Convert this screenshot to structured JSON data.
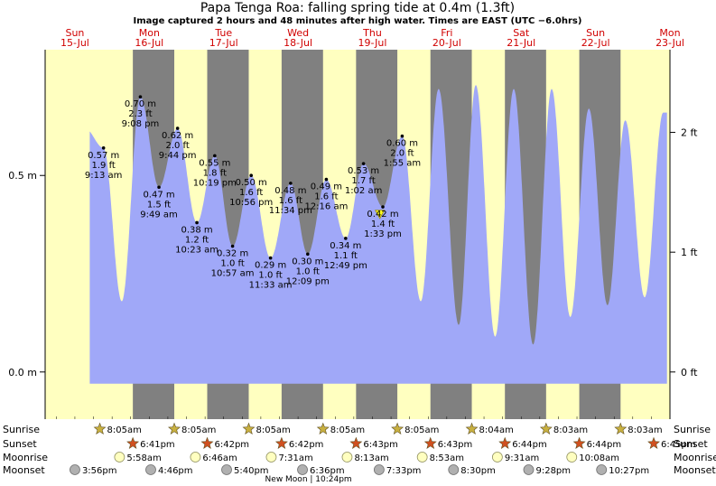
{
  "title": "Papa Tenga Roa: falling  spring tide at 0.4m (1.3ft)",
  "subtitle": "Image captured 2 hours and 48 minutes after high water. Times are EAST (UTC −6.0hrs)",
  "colors": {
    "day": "#ffffc0",
    "night": "#808080",
    "tide": "#a0a8f8",
    "day_label": "#d00000",
    "star_sun": "#c8b040",
    "star_sunset": "#d05020"
  },
  "chart_data": {
    "type": "area",
    "x_unit": "days since Sun 15-Jul 00:00 (EAST)",
    "days": [
      {
        "dow": "Sun",
        "date": "15-Jul"
      },
      {
        "dow": "Mon",
        "date": "16-Jul"
      },
      {
        "dow": "Tue",
        "date": "17-Jul"
      },
      {
        "dow": "Wed",
        "date": "18-Jul"
      },
      {
        "dow": "Thu",
        "date": "19-Jul"
      },
      {
        "dow": "Fri",
        "date": "20-Jul"
      },
      {
        "dow": "Sat",
        "date": "21-Jul"
      },
      {
        "dow": "Sun",
        "date": "22-Jul"
      },
      {
        "dow": "Mon",
        "date": "23-Jul"
      }
    ],
    "ylim": [
      -0.12,
      0.82
    ],
    "yticks_m": [
      {
        "v": 0.0,
        "label": "0.0 m"
      },
      {
        "v": 0.5,
        "label": "0.5 m"
      }
    ],
    "yticks_ft": [
      {
        "v": 0,
        "label": "0 ft"
      },
      {
        "v": 1,
        "label": "1 ft"
      },
      {
        "v": 2,
        "label": "2 ft"
      }
    ],
    "xlim": [
      -0.4,
      8.0
    ],
    "tide_range": [
      0.2,
      7.96
    ],
    "extremes": [
      {
        "t": 0.135,
        "m": 0.62,
        "label": false
      },
      {
        "t": 0.385,
        "m": 0.57,
        "text": [
          "0.57 m",
          "1.9 ft",
          "9:13 am"
        ]
      },
      {
        "t": 0.63,
        "m": 0.18,
        "label": false
      },
      {
        "t": 0.88,
        "m": 0.7,
        "text": [
          "0.70 m",
          "2.3 ft",
          "9:08 pm"
        ]
      },
      {
        "t": 1.13,
        "m": 0.47,
        "text": [
          "0.47 m",
          "1.5 ft",
          "9:49 am"
        ]
      },
      {
        "t": 1.38,
        "m": 0.62,
        "text": [
          "0.62 m",
          "2.0 ft",
          "9:44 pm"
        ]
      },
      {
        "t": 1.64,
        "m": 0.38,
        "text": [
          "0.38 m",
          "1.2 ft",
          "10:23 am"
        ]
      },
      {
        "t": 1.88,
        "m": 0.55,
        "text": [
          "0.55 m",
          "1.8 ft",
          "10:19 pm"
        ]
      },
      {
        "t": 2.12,
        "m": 0.32,
        "text": [
          "0.32 m",
          "1.0 ft",
          "10:57 am"
        ]
      },
      {
        "t": 2.37,
        "m": 0.5,
        "text": [
          "0.50 m",
          "1.6 ft",
          "10:56 pm"
        ]
      },
      {
        "t": 2.63,
        "m": 0.29,
        "text": [
          "0.29 m",
          "1.0 ft",
          "11:33 am"
        ]
      },
      {
        "t": 2.9,
        "m": 0.48,
        "text": [
          "0.48 m",
          "1.6 ft",
          "11:34 pm"
        ]
      },
      {
        "t": 3.13,
        "m": 0.3,
        "text": [
          "0.30 m",
          "1.0 ft",
          "12:09 pm"
        ]
      },
      {
        "t": 3.38,
        "m": 0.49,
        "text": [
          "0.49 m",
          "1.6 ft",
          "12:16 am"
        ]
      },
      {
        "t": 3.64,
        "m": 0.34,
        "text": [
          "0.34 m",
          "1.1 ft",
          "12:49 pm"
        ]
      },
      {
        "t": 3.88,
        "m": 0.53,
        "text": [
          "0.53 m",
          "1.7 ft",
          "1:02 am"
        ]
      },
      {
        "t": 4.14,
        "m": 0.42,
        "text": [
          "0.42 m",
          "1.4 ft",
          "1:33 pm"
        ]
      },
      {
        "t": 4.4,
        "m": 0.6,
        "text": [
          "0.60 m",
          "2.0 ft",
          "1:55 am"
        ]
      },
      {
        "t": 4.65,
        "m": 0.18,
        "label": false
      },
      {
        "t": 4.89,
        "m": 0.72,
        "label": false
      },
      {
        "t": 5.16,
        "m": 0.12,
        "label": false
      },
      {
        "t": 5.39,
        "m": 0.73,
        "label": false
      },
      {
        "t": 5.65,
        "m": 0.09,
        "label": false
      },
      {
        "t": 5.9,
        "m": 0.72,
        "label": false
      },
      {
        "t": 6.16,
        "m": 0.07,
        "label": false
      },
      {
        "t": 6.41,
        "m": 0.72,
        "label": false
      },
      {
        "t": 6.66,
        "m": 0.14,
        "label": false
      },
      {
        "t": 6.91,
        "m": 0.67,
        "label": false
      },
      {
        "t": 7.16,
        "m": 0.17,
        "label": false
      },
      {
        "t": 7.4,
        "m": 0.64,
        "label": false
      },
      {
        "t": 7.66,
        "m": 0.19,
        "label": false
      },
      {
        "t": 7.91,
        "m": 0.66,
        "label": false
      }
    ],
    "current": {
      "t": 4.1,
      "m": 0.4
    },
    "sun": [
      {
        "rise": 0.335,
        "set": 0.779,
        "rise_label": "8:05am",
        "set_label": "6:41pm"
      },
      {
        "rise": 1.336,
        "set": 1.779,
        "rise_label": "8:05am",
        "set_label": "6:42pm"
      },
      {
        "rise": 2.337,
        "set": 2.779,
        "rise_label": "8:05am",
        "set_label": "6:42pm"
      },
      {
        "rise": 3.336,
        "set": 3.78,
        "rise_label": "8:05am",
        "set_label": "6:43pm"
      },
      {
        "rise": 4.335,
        "set": 4.78,
        "rise_label": "8:05am",
        "set_label": "6:43pm"
      },
      {
        "rise": 5.336,
        "set": 5.781,
        "rise_label": "8:04am",
        "set_label": "6:44pm"
      },
      {
        "rise": 6.335,
        "set": 6.781,
        "rise_label": "8:03am",
        "set_label": "6:44pm"
      },
      {
        "rise": 7.336,
        "set": 7.782,
        "rise_label": "8:03am",
        "set_label": "6:45pm"
      }
    ],
    "moonrise": [
      {
        "t": 0.6,
        "label": "5:58am"
      },
      {
        "t": 1.62,
        "label": "6:46am"
      },
      {
        "t": 2.64,
        "label": "7:31am"
      },
      {
        "t": 3.66,
        "label": "8:13am"
      },
      {
        "t": 4.67,
        "label": "8:53am"
      },
      {
        "t": 5.68,
        "label": "9:31am"
      },
      {
        "t": 6.68,
        "label": "10:08am"
      }
    ],
    "moonset": [
      {
        "t": 0.0,
        "label": "3:56pm"
      },
      {
        "t": 1.02,
        "label": "4:46pm"
      },
      {
        "t": 2.04,
        "label": "5:40pm"
      },
      {
        "t": 3.06,
        "label": "6:36pm"
      },
      {
        "t": 4.09,
        "label": "7:33pm"
      },
      {
        "t": 5.09,
        "label": "8:30pm"
      },
      {
        "t": 6.1,
        "label": "9:28pm"
      },
      {
        "t": 7.08,
        "label": "10:27pm"
      }
    ],
    "row_labels": {
      "sunrise": "Sunrise",
      "sunset": "Sunset",
      "moonrise": "Moonrise",
      "moonset": "Moonset"
    },
    "new_moon": {
      "t": 3.14,
      "label": "New Moon | 10:24pm"
    }
  }
}
